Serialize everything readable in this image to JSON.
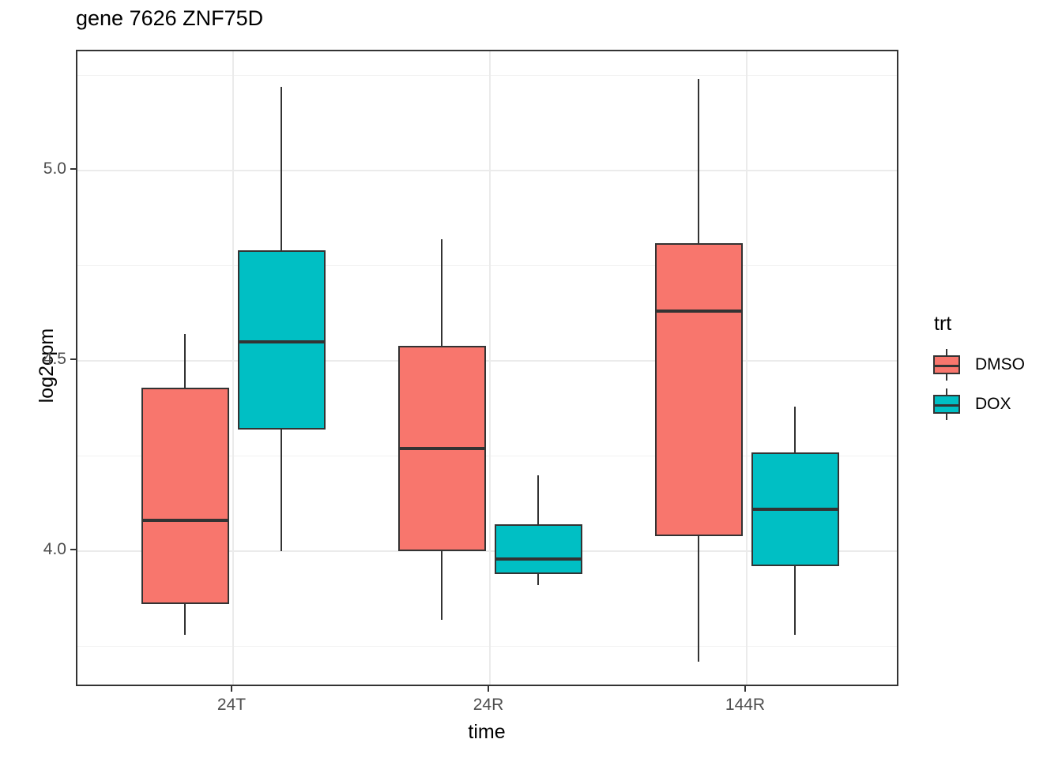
{
  "title": "gene 7626 ZNF75D",
  "axes": {
    "x": {
      "label": "time",
      "categories": [
        "24T",
        "24R",
        "144R"
      ]
    },
    "y": {
      "label": "log2cpm",
      "ticks": [
        "5.0",
        "4.5",
        "4.0"
      ]
    }
  },
  "legend": {
    "title": "trt",
    "entries": [
      {
        "label": "DMSO",
        "color": "#F8766D"
      },
      {
        "label": "DOX",
        "color": "#00BFC4"
      }
    ]
  },
  "colors": {
    "dmso": "#F8766D",
    "dox": "#00BFC4",
    "box_outline": "#333333",
    "grid_major": "#ebebeb",
    "grid_minor": "#f1f1f1",
    "tick_label": "#4d4d4d",
    "panel_border": "#333333",
    "background": "#ffffff"
  },
  "chart_data": {
    "type": "boxplot",
    "title": "gene 7626 ZNF75D",
    "xlabel": "time",
    "ylabel": "log2cpm",
    "categories": [
      "24T",
      "24R",
      "144R"
    ],
    "ylim": [
      3.64,
      5.31
    ],
    "yticks_major": [
      4.0,
      4.5,
      5.0
    ],
    "yticks_minor": [
      3.75,
      4.25,
      4.75,
      5.25
    ],
    "grid": true,
    "legend_position": "right",
    "legend_title": "trt",
    "series": [
      {
        "name": "DMSO",
        "color": "#F8766D",
        "boxes": [
          {
            "category": "24T",
            "whisker_low": 3.78,
            "q1": 3.86,
            "median": 4.08,
            "q3": 4.43,
            "whisker_high": 4.57
          },
          {
            "category": "24R",
            "whisker_low": 3.82,
            "q1": 4.0,
            "median": 4.27,
            "q3": 4.54,
            "whisker_high": 4.82
          },
          {
            "category": "144R",
            "whisker_low": 3.71,
            "q1": 4.04,
            "median": 4.63,
            "q3": 4.81,
            "whisker_high": 5.24
          }
        ]
      },
      {
        "name": "DOX",
        "color": "#00BFC4",
        "boxes": [
          {
            "category": "24T",
            "whisker_low": 4.0,
            "q1": 4.32,
            "median": 4.55,
            "q3": 4.79,
            "whisker_high": 5.22
          },
          {
            "category": "24R",
            "whisker_low": 3.91,
            "q1": 3.94,
            "median": 3.98,
            "q3": 4.07,
            "whisker_high": 4.2
          },
          {
            "category": "144R",
            "whisker_low": 3.78,
            "q1": 3.96,
            "median": 4.11,
            "q3": 4.26,
            "whisker_high": 4.38
          }
        ]
      }
    ]
  }
}
